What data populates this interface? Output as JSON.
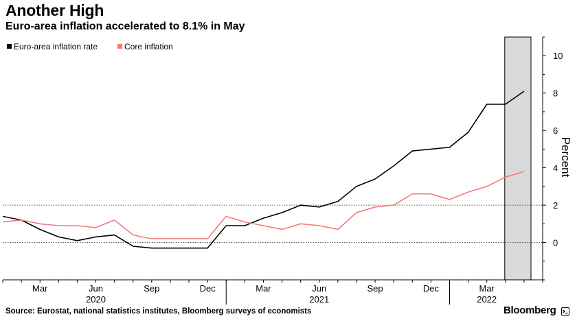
{
  "title": "Another High",
  "subtitle": "Euro-area inflation accelerated to 8.1% in May",
  "source": "Source: Eurostat, national statistics institutes, Bloomberg surveys of economists",
  "brand": "Bloomberg",
  "brand_icon": "bloomberg-terminal-icon",
  "chart_data": {
    "type": "line",
    "ylabel": "Percent",
    "ylim": [
      -2,
      11
    ],
    "yticks": [
      0,
      2,
      4,
      6,
      8,
      10
    ],
    "yaxis_side": "right",
    "xlim": [
      "2020-01",
      "2022-06"
    ],
    "xticks": [
      {
        "month": "2020-03",
        "label": "Mar"
      },
      {
        "month": "2020-06",
        "label": "Jun"
      },
      {
        "month": "2020-09",
        "label": "Sep"
      },
      {
        "month": "2020-12",
        "label": "Dec"
      },
      {
        "month": "2021-03",
        "label": "Mar"
      },
      {
        "month": "2021-06",
        "label": "Jun"
      },
      {
        "month": "2021-09",
        "label": "Sep"
      },
      {
        "month": "2021-12",
        "label": "Dec"
      },
      {
        "month": "2022-03",
        "label": "Mar"
      }
    ],
    "year_labels": [
      {
        "month": "2020-06",
        "label": "2020"
      },
      {
        "month": "2021-06",
        "label": "2021"
      },
      {
        "month": "2022-03",
        "label": "2022"
      }
    ],
    "reference_lines": [
      0,
      2
    ],
    "legend_position": "top-left",
    "shaded_region": {
      "from": "2022-04",
      "to": "2022-05",
      "color": "#d9d9d9"
    },
    "x": [
      "2020-01",
      "2020-02",
      "2020-03",
      "2020-04",
      "2020-05",
      "2020-06",
      "2020-07",
      "2020-08",
      "2020-09",
      "2020-10",
      "2020-11",
      "2020-12",
      "2021-01",
      "2021-02",
      "2021-03",
      "2021-04",
      "2021-05",
      "2021-06",
      "2021-07",
      "2021-08",
      "2021-09",
      "2021-10",
      "2021-11",
      "2021-12",
      "2022-01",
      "2022-02",
      "2022-03",
      "2022-04",
      "2022-05"
    ],
    "series": [
      {
        "name": "Euro-area inflation rate",
        "color": "#000000",
        "values": [
          1.4,
          1.2,
          0.7,
          0.3,
          0.1,
          0.3,
          0.4,
          -0.2,
          -0.3,
          -0.3,
          -0.3,
          -0.3,
          0.9,
          0.9,
          1.3,
          1.6,
          2.0,
          1.9,
          2.2,
          3.0,
          3.4,
          4.1,
          4.9,
          5.0,
          5.1,
          5.9,
          7.4,
          7.4,
          8.1
        ]
      },
      {
        "name": "Core inflation",
        "color": "#f07c78",
        "values": [
          1.1,
          1.2,
          1.0,
          0.9,
          0.9,
          0.8,
          1.2,
          0.4,
          0.2,
          0.2,
          0.2,
          0.2,
          1.4,
          1.1,
          0.9,
          0.7,
          1.0,
          0.9,
          0.7,
          1.6,
          1.9,
          2.0,
          2.6,
          2.6,
          2.3,
          2.7,
          3.0,
          3.5,
          3.8
        ]
      }
    ]
  }
}
